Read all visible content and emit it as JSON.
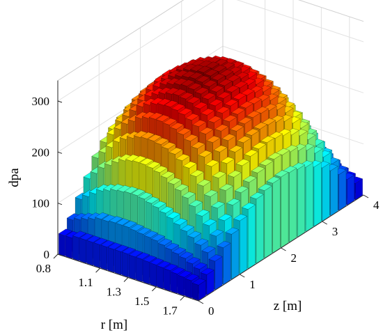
{
  "chart_data": {
    "type": "bar3d",
    "ylabel": "dpa",
    "xlabel": "r [m]",
    "zlabel": "z [m]",
    "r_ticks": [
      "0.8",
      "1.1",
      "1.3",
      "1.5",
      "1.7"
    ],
    "z_ticks": [
      "0",
      "1",
      "2",
      "3",
      "4"
    ],
    "value_ticks": [
      "0",
      "100",
      "200",
      "300"
    ],
    "value_range": [
      0,
      300
    ],
    "r_range": [
      0.8,
      1.8
    ],
    "z_range": [
      0,
      4
    ],
    "grid": true,
    "colormap": "jet",
    "r_bins": [
      0.8,
      0.85,
      0.9,
      0.95,
      1.0,
      1.05,
      1.1,
      1.15,
      1.2,
      1.25,
      1.3,
      1.35,
      1.4,
      1.45,
      1.5,
      1.55,
      1.6,
      1.65,
      1.7,
      1.75
    ],
    "z_bins": [
      0.0,
      0.2,
      0.4,
      0.6,
      0.8,
      1.0,
      1.2,
      1.4,
      1.6,
      1.8,
      2.0,
      2.2,
      2.4,
      2.6,
      2.8,
      3.0,
      3.2,
      3.4,
      3.6,
      3.8
    ],
    "values": [
      [
        40,
        60,
        90,
        120,
        150,
        170,
        185,
        195,
        205,
        210,
        212,
        210,
        205,
        195,
        185,
        170,
        150,
        125,
        95,
        60
      ],
      [
        40,
        65,
        100,
        135,
        165,
        190,
        205,
        215,
        225,
        230,
        232,
        230,
        225,
        215,
        205,
        190,
        165,
        135,
        100,
        62
      ],
      [
        45,
        70,
        110,
        150,
        180,
        205,
        220,
        232,
        240,
        245,
        248,
        246,
        240,
        232,
        220,
        205,
        180,
        145,
        105,
        65
      ],
      [
        45,
        75,
        120,
        160,
        195,
        220,
        235,
        245,
        255,
        260,
        262,
        260,
        255,
        245,
        235,
        218,
        192,
        155,
        110,
        68
      ],
      [
        45,
        80,
        125,
        170,
        205,
        230,
        248,
        258,
        266,
        270,
        272,
        270,
        266,
        258,
        246,
        228,
        200,
        162,
        115,
        70
      ],
      [
        45,
        80,
        130,
        178,
        212,
        240,
        256,
        266,
        275,
        280,
        282,
        280,
        275,
        266,
        254,
        235,
        206,
        166,
        118,
        70
      ],
      [
        45,
        82,
        132,
        182,
        218,
        245,
        262,
        272,
        280,
        285,
        287,
        285,
        280,
        272,
        258,
        238,
        208,
        168,
        118,
        70
      ],
      [
        45,
        82,
        134,
        184,
        220,
        248,
        265,
        276,
        284,
        288,
        290,
        288,
        284,
        275,
        260,
        240,
        210,
        168,
        118,
        70
      ],
      [
        45,
        82,
        134,
        184,
        220,
        248,
        266,
        278,
        286,
        290,
        292,
        290,
        285,
        276,
        260,
        240,
        210,
        168,
        118,
        70
      ],
      [
        45,
        80,
        132,
        182,
        218,
        246,
        264,
        276,
        284,
        288,
        290,
        288,
        283,
        274,
        258,
        238,
        208,
        166,
        116,
        68
      ],
      [
        44,
        78,
        128,
        178,
        214,
        242,
        260,
        272,
        280,
        284,
        286,
        284,
        279,
        270,
        254,
        234,
        204,
        162,
        112,
        66
      ],
      [
        44,
        76,
        124,
        172,
        208,
        236,
        254,
        266,
        274,
        278,
        280,
        278,
        273,
        264,
        248,
        228,
        198,
        158,
        108,
        64
      ],
      [
        43,
        74,
        118,
        164,
        200,
        228,
        246,
        258,
        266,
        270,
        272,
        270,
        265,
        256,
        240,
        220,
        190,
        150,
        104,
        62
      ],
      [
        42,
        70,
        112,
        156,
        190,
        218,
        236,
        248,
        256,
        260,
        262,
        260,
        255,
        246,
        230,
        210,
        180,
        142,
        98,
        60
      ],
      [
        41,
        66,
        104,
        146,
        178,
        206,
        224,
        236,
        244,
        248,
        250,
        248,
        243,
        234,
        218,
        198,
        170,
        134,
        92,
        56
      ],
      [
        40,
        62,
        96,
        134,
        164,
        192,
        210,
        222,
        230,
        234,
        236,
        234,
        229,
        220,
        204,
        184,
        158,
        124,
        86,
        52
      ],
      [
        38,
        58,
        88,
        120,
        148,
        174,
        192,
        204,
        212,
        216,
        218,
        216,
        211,
        202,
        188,
        168,
        144,
        112,
        78,
        48
      ],
      [
        36,
        52,
        78,
        106,
        130,
        154,
        170,
        182,
        190,
        194,
        196,
        194,
        189,
        180,
        168,
        150,
        128,
        100,
        70,
        44
      ],
      [
        34,
        46,
        68,
        90,
        110,
        130,
        144,
        154,
        162,
        166,
        168,
        166,
        162,
        154,
        144,
        128,
        110,
        86,
        60,
        38
      ],
      [
        30,
        40,
        56,
        72,
        88,
        104,
        116,
        126,
        132,
        136,
        138,
        136,
        132,
        126,
        116,
        104,
        88,
        70,
        50,
        32
      ]
    ]
  }
}
